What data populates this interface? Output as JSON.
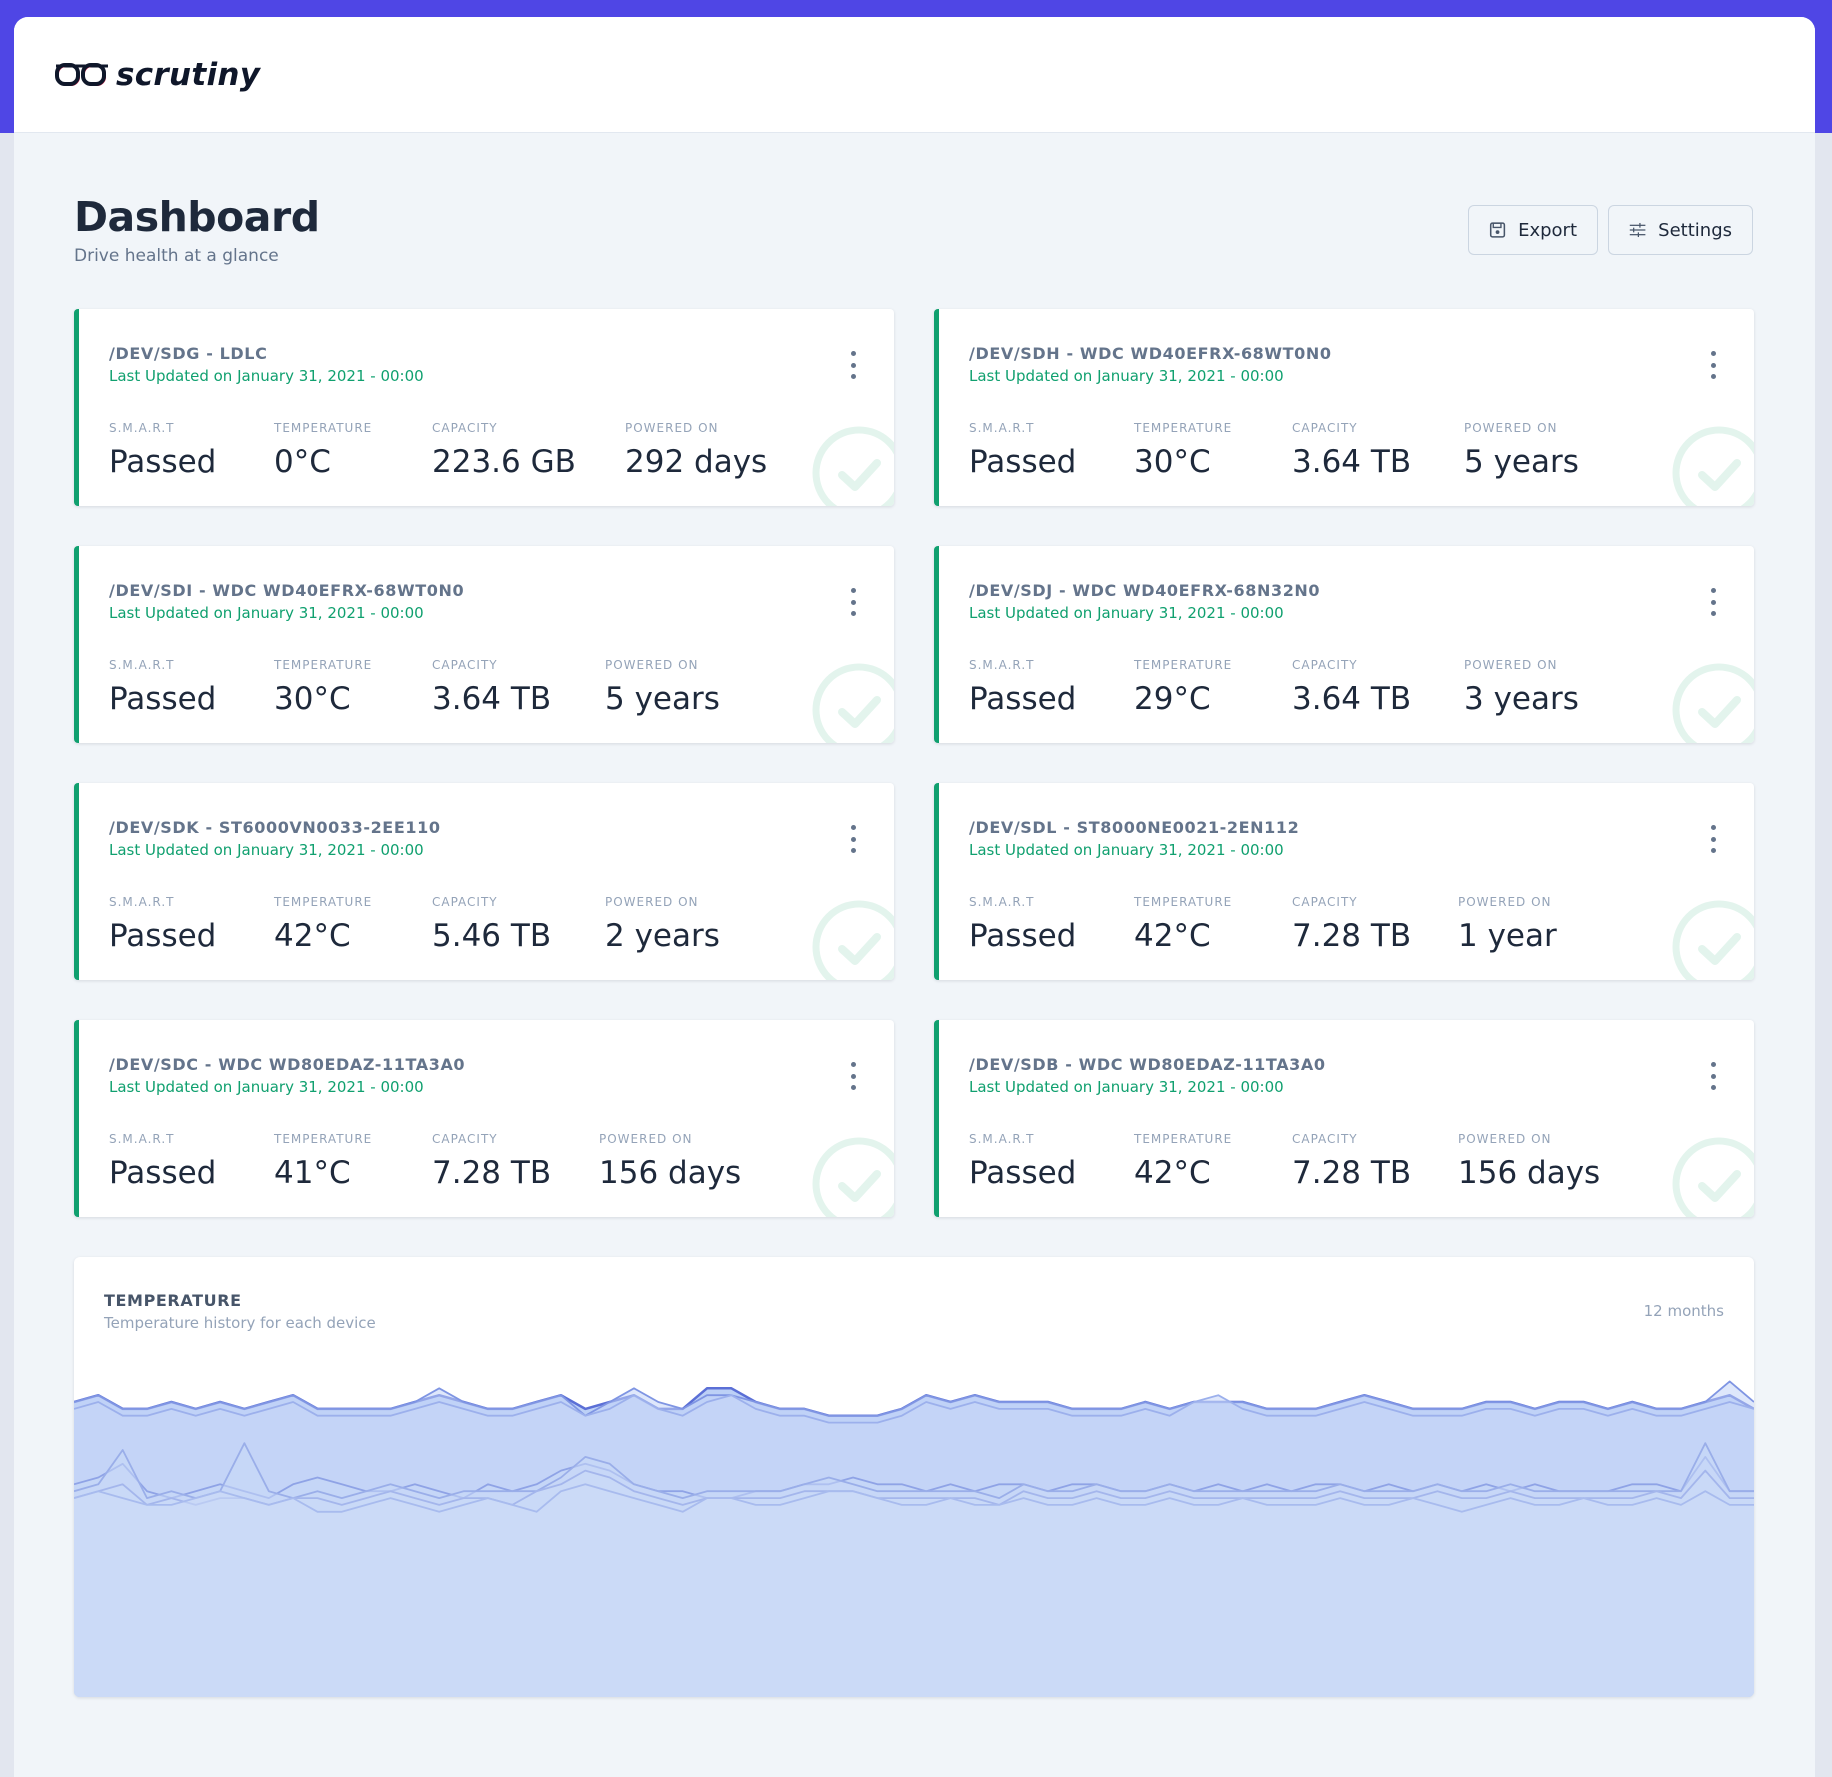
{
  "app": {
    "name": "scrutiny"
  },
  "page": {
    "title": "Dashboard",
    "subtitle": "Drive health at a glance"
  },
  "actions": {
    "export_label": "Export",
    "settings_label": "Settings"
  },
  "labels": {
    "smart": "S.M.A.R.T",
    "temperature": "TEMPERATURE",
    "capacity": "CAPACITY",
    "powered_on": "POWERED ON"
  },
  "devices": [
    {
      "title": "/DEV/SDG - LDLC",
      "updated": "Last Updated on January 31, 2021 - 00:00",
      "smart": "Passed",
      "temperature": "0°C",
      "capacity": "223.6 GB",
      "powered_on": "292 days"
    },
    {
      "title": "/DEV/SDH - WDC WD40EFRX-68WT0N0",
      "updated": "Last Updated on January 31, 2021 - 00:00",
      "smart": "Passed",
      "temperature": "30°C",
      "capacity": "3.64 TB",
      "powered_on": "5 years"
    },
    {
      "title": "/DEV/SDI - WDC WD40EFRX-68WT0N0",
      "updated": "Last Updated on January 31, 2021 - 00:00",
      "smart": "Passed",
      "temperature": "30°C",
      "capacity": "3.64 TB",
      "powered_on": "5 years"
    },
    {
      "title": "/DEV/SDJ - WDC WD40EFRX-68N32N0",
      "updated": "Last Updated on January 31, 2021 - 00:00",
      "smart": "Passed",
      "temperature": "29°C",
      "capacity": "3.64 TB",
      "powered_on": "3 years"
    },
    {
      "title": "/DEV/SDK - ST6000VN0033-2EE110",
      "updated": "Last Updated on January 31, 2021 - 00:00",
      "smart": "Passed",
      "temperature": "42°C",
      "capacity": "5.46 TB",
      "powered_on": "2 years"
    },
    {
      "title": "/DEV/SDL - ST8000NE0021-2EN112",
      "updated": "Last Updated on January 31, 2021 - 00:00",
      "smart": "Passed",
      "temperature": "42°C",
      "capacity": "7.28 TB",
      "powered_on": "1 year"
    },
    {
      "title": "/DEV/SDC - WDC WD80EDAZ-11TA3A0",
      "updated": "Last Updated on January 31, 2021 - 00:00",
      "smart": "Passed",
      "temperature": "41°C",
      "capacity": "7.28 TB",
      "powered_on": "156 days"
    },
    {
      "title": "/DEV/SDB - WDC WD80EDAZ-11TA3A0",
      "updated": "Last Updated on January 31, 2021 - 00:00",
      "smart": "Passed",
      "temperature": "42°C",
      "capacity": "7.28 TB",
      "powered_on": "156 days"
    }
  ],
  "temperature_panel": {
    "title": "TEMPERATURE",
    "subtitle": "Temperature history for each device",
    "range": "12 months"
  },
  "chart_data": {
    "type": "area",
    "title": "TEMPERATURE",
    "subtitle": "Temperature history for each device",
    "x_points": 70,
    "ylim": [
      0,
      50
    ],
    "series": [
      {
        "values": [
          43,
          44,
          42,
          42,
          43,
          42,
          43,
          42,
          43,
          44,
          42,
          42,
          42,
          42,
          43,
          44,
          43,
          42,
          42,
          43,
          44,
          42,
          43,
          44,
          42,
          42,
          45,
          45,
          43,
          42,
          42,
          41,
          41,
          41,
          42,
          44,
          43,
          44,
          43,
          43,
          43,
          42,
          42,
          42,
          43,
          42,
          43,
          43,
          43,
          42,
          42,
          42,
          43,
          44,
          43,
          42,
          42,
          42,
          43,
          43,
          42,
          43,
          43,
          42,
          43,
          42,
          42,
          43,
          44,
          42
        ]
      },
      {
        "values": [
          43,
          44,
          42,
          42,
          43,
          42,
          43,
          42,
          43,
          44,
          42,
          42,
          42,
          42,
          43,
          45,
          43,
          42,
          42,
          43,
          44,
          41,
          43,
          45,
          43,
          42,
          44,
          44,
          43,
          42,
          42,
          41,
          41,
          41,
          42,
          44,
          43,
          44,
          43,
          43,
          43,
          42,
          42,
          42,
          43,
          42,
          43,
          43,
          43,
          42,
          42,
          42,
          43,
          44,
          43,
          42,
          42,
          42,
          43,
          43,
          42,
          43,
          43,
          42,
          43,
          42,
          42,
          43,
          46,
          43
        ]
      },
      {
        "values": [
          42,
          43,
          41,
          41,
          42,
          41,
          42,
          41,
          42,
          43,
          41,
          41,
          41,
          41,
          42,
          43,
          42,
          41,
          41,
          42,
          43,
          41,
          42,
          44,
          42,
          41,
          43,
          44,
          42,
          41,
          41,
          40,
          40,
          40,
          41,
          43,
          42,
          43,
          42,
          42,
          42,
          41,
          41,
          41,
          42,
          41,
          43,
          44,
          42,
          41,
          41,
          41,
          42,
          43,
          42,
          41,
          41,
          41,
          42,
          42,
          41,
          42,
          42,
          41,
          42,
          41,
          41,
          42,
          43,
          42
        ]
      },
      {
        "values": [
          31,
          32,
          34,
          30,
          29,
          30,
          31,
          30,
          29,
          31,
          32,
          31,
          30,
          30,
          31,
          30,
          29,
          31,
          30,
          31,
          33,
          34,
          33,
          31,
          30,
          30,
          29,
          29,
          30,
          30,
          31,
          31,
          32,
          31,
          31,
          30,
          31,
          30,
          31,
          31,
          30,
          31,
          31,
          30,
          30,
          31,
          30,
          31,
          30,
          31,
          30,
          31,
          31,
          30,
          31,
          30,
          31,
          30,
          31,
          30,
          31,
          30,
          30,
          30,
          31,
          31,
          30,
          35,
          30,
          30
        ]
      },
      {
        "values": [
          30,
          31,
          36,
          29,
          30,
          29,
          30,
          37,
          30,
          29,
          30,
          29,
          30,
          31,
          30,
          29,
          30,
          30,
          30,
          30,
          32,
          35,
          34,
          31,
          30,
          29,
          30,
          30,
          30,
          30,
          31,
          32,
          31,
          30,
          30,
          30,
          30,
          30,
          29,
          31,
          30,
          30,
          31,
          30,
          30,
          31,
          30,
          30,
          30,
          30,
          30,
          30,
          31,
          30,
          30,
          30,
          31,
          30,
          30,
          31,
          30,
          30,
          30,
          30,
          30,
          30,
          30,
          37,
          30,
          30
        ]
      },
      {
        "values": [
          29,
          30,
          31,
          28,
          29,
          28,
          29,
          29,
          28,
          29,
          29,
          28,
          29,
          30,
          29,
          28,
          29,
          29,
          28,
          30,
          31,
          33,
          32,
          30,
          29,
          28,
          29,
          29,
          29,
          29,
          30,
          30,
          30,
          29,
          29,
          29,
          29,
          29,
          28,
          30,
          29,
          29,
          30,
          29,
          29,
          30,
          29,
          29,
          29,
          29,
          29,
          29,
          30,
          29,
          29,
          29,
          30,
          29,
          29,
          30,
          29,
          29,
          29,
          29,
          29,
          30,
          29,
          33,
          29,
          29
        ]
      },
      {
        "values": [
          29,
          30,
          29,
          28,
          28,
          29,
          30,
          29,
          28,
          29,
          27,
          27,
          28,
          29,
          28,
          27,
          28,
          29,
          28,
          27,
          30,
          31,
          30,
          29,
          28,
          27,
          29,
          29,
          28,
          28,
          29,
          30,
          30,
          29,
          28,
          28,
          29,
          28,
          28,
          29,
          28,
          28,
          29,
          28,
          28,
          29,
          28,
          28,
          29,
          28,
          28,
          28,
          29,
          28,
          28,
          29,
          28,
          27,
          28,
          29,
          28,
          28,
          29,
          28,
          28,
          29,
          28,
          30,
          28,
          28
        ]
      },
      {
        "values": [
          0,
          0,
          0,
          0,
          0,
          0,
          0,
          0,
          0,
          0,
          0,
          0,
          0,
          0,
          0,
          0,
          0,
          0,
          0,
          0,
          0,
          0,
          0,
          0,
          0,
          0,
          0,
          0,
          0,
          0,
          0,
          0,
          0,
          0,
          0,
          0,
          0,
          0,
          0,
          0,
          0,
          0,
          0,
          0,
          0,
          0,
          0,
          0,
          0,
          0,
          0,
          0,
          0,
          0,
          0,
          0,
          0,
          0,
          0,
          0,
          0,
          0,
          0,
          0,
          0,
          0,
          0,
          0,
          0,
          0
        ]
      }
    ]
  },
  "colors": {
    "accent": "#4f46e5",
    "success": "#10a06f",
    "area_fill": "#c7d7f7",
    "line": "#6c7ed8"
  }
}
